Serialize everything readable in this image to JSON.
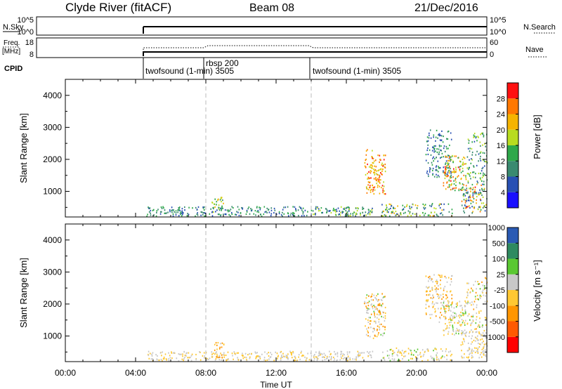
{
  "header": {
    "station": "Clyde River (fitACF)",
    "beam": "Beam 08",
    "date": "21/Dec/2016"
  },
  "nsky_panel": {
    "left_label": "N.Sky",
    "right_label": "N.Search",
    "left_ticks": [
      "10^5",
      "10^0"
    ],
    "right_ticks": [
      "10^5",
      "10^0"
    ]
  },
  "freq_panel": {
    "left_label_1": "Freq.",
    "left_label_2": "[MHz]",
    "right_label": "Nave",
    "left_ticks": [
      "18",
      "8"
    ],
    "right_ticks": [
      "60",
      "0"
    ]
  },
  "cpid_panel": {
    "label": "CPID",
    "entries": [
      {
        "label": "twofsound (1-min) 3505",
        "start_hour": 4.6
      },
      {
        "label": "rbsp 200",
        "start_hour": 8.0
      },
      {
        "label": "twofsound (1-min) 3505",
        "start_hour": 14.0
      }
    ]
  },
  "colors": {
    "power_scale": [
      "#1a10ff",
      "#2850b4",
      "#3a8a70",
      "#2ea84a",
      "#b8dc20",
      "#f5b400",
      "#ff7800",
      "#ff1010"
    ],
    "velocity_scale": [
      "#ff0000",
      "#ff5a00",
      "#ff9600",
      "#ffc832",
      "#c8c8c8",
      "#5ac832",
      "#2e8a60",
      "#2a5ab4"
    ]
  },
  "chart_data": [
    {
      "type": "heatmap",
      "title": "",
      "xlabel": "",
      "ylabel": "Slant Range [km]",
      "xlim": [
        0,
        24
      ],
      "ylim": [
        200,
        4500
      ],
      "yticks": [
        "1000",
        "2000",
        "3000",
        "4000"
      ],
      "colorbar": {
        "label": "Power [dB]",
        "ticks": [
          "4",
          "8",
          "12",
          "16",
          "20",
          "24",
          "28"
        ],
        "range": [
          0,
          32
        ]
      },
      "scatter_regions": [
        {
          "x": [
            4.6,
            14.0
          ],
          "range": [
            200,
            500
          ],
          "density": 0.55,
          "values": [
            4,
            16
          ]
        },
        {
          "x": [
            8.3,
            9.0
          ],
          "range": [
            300,
            800
          ],
          "density": 0.5,
          "values": [
            8,
            24
          ]
        },
        {
          "x": [
            14.0,
            17.5
          ],
          "range": [
            200,
            500
          ],
          "density": 0.7,
          "values": [
            4,
            20
          ]
        },
        {
          "x": [
            17.0,
            18.2
          ],
          "range": [
            900,
            2300
          ],
          "density": 0.55,
          "values": [
            18,
            30
          ]
        },
        {
          "x": [
            18.0,
            22.0
          ],
          "range": [
            200,
            600
          ],
          "density": 0.5,
          "values": [
            4,
            24
          ]
        },
        {
          "x": [
            20.5,
            22.0
          ],
          "range": [
            1400,
            2900
          ],
          "density": 0.45,
          "values": [
            4,
            16
          ]
        },
        {
          "x": [
            21.5,
            22.8
          ],
          "range": [
            1000,
            2100
          ],
          "density": 0.55,
          "values": [
            14,
            30
          ]
        },
        {
          "x": [
            22.5,
            24.0
          ],
          "range": [
            300,
            1200
          ],
          "density": 0.6,
          "values": [
            4,
            30
          ]
        },
        {
          "x": [
            22.8,
            24.0
          ],
          "range": [
            1200,
            2800
          ],
          "density": 0.35,
          "values": [
            6,
            20
          ]
        }
      ]
    },
    {
      "type": "heatmap",
      "title": "",
      "xlabel": "Time UT",
      "ylabel": "Slant Range [km]",
      "xlim": [
        0,
        24
      ],
      "ylim": [
        200,
        4500
      ],
      "yticks": [
        "1000",
        "2000",
        "3000",
        "4000"
      ],
      "xticks": [
        "00:00",
        "04:00",
        "08:00",
        "12:00",
        "16:00",
        "20:00",
        "00:00"
      ],
      "colorbar": {
        "label": "Velocity [m s⁻¹]",
        "ticks": [
          "-1000",
          "-500",
          "-100",
          "-25",
          "25",
          "100",
          "500",
          "1000"
        ],
        "range": [
          -1200,
          1200
        ]
      },
      "scatter_regions": [
        {
          "x": [
            4.6,
            14.0
          ],
          "range": [
            200,
            500
          ],
          "density": 0.55,
          "values": [
            -150,
            150
          ]
        },
        {
          "x": [
            8.3,
            9.0
          ],
          "range": [
            300,
            800
          ],
          "density": 0.5,
          "values": [
            -600,
            100
          ]
        },
        {
          "x": [
            14.0,
            17.5
          ],
          "range": [
            200,
            500
          ],
          "density": 0.7,
          "values": [
            -100,
            300
          ]
        },
        {
          "x": [
            17.0,
            18.2
          ],
          "range": [
            900,
            2300
          ],
          "density": 0.55,
          "values": [
            -600,
            400
          ]
        },
        {
          "x": [
            18.0,
            22.0
          ],
          "range": [
            200,
            600
          ],
          "density": 0.5,
          "values": [
            -200,
            400
          ]
        },
        {
          "x": [
            20.5,
            22.0
          ],
          "range": [
            1400,
            2900
          ],
          "density": 0.45,
          "values": [
            -500,
            300
          ]
        },
        {
          "x": [
            21.5,
            22.8
          ],
          "range": [
            1000,
            2100
          ],
          "density": 0.55,
          "values": [
            -300,
            500
          ]
        },
        {
          "x": [
            22.5,
            24.0
          ],
          "range": [
            300,
            1200
          ],
          "density": 0.6,
          "values": [
            -25,
            25
          ]
        },
        {
          "x": [
            22.8,
            24.0
          ],
          "range": [
            1200,
            2800
          ],
          "density": 0.35,
          "values": [
            -400,
            400
          ]
        }
      ]
    }
  ]
}
